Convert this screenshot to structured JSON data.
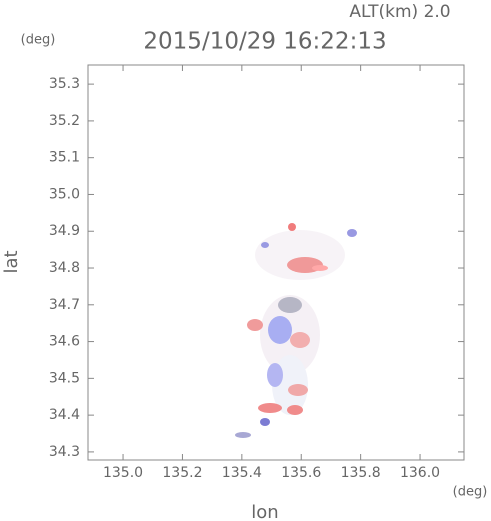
{
  "chart_data": {
    "type": "map",
    "title": "2015/10/29 16:22:13",
    "subtitle": "ALT(km) 2.0",
    "y_unit": "(deg)",
    "x_unit": "(deg)",
    "x_label": "lon",
    "y_label": "lat",
    "xlim": [
      134.882,
      136.148
    ],
    "ylim": [
      34.278,
      35.352
    ],
    "xticks": [
      {
        "value": 135.0,
        "label": "135.0"
      },
      135.2,
      135.4,
      135.6,
      135.8,
      {
        "value": 136.0,
        "label": "136.0"
      }
    ],
    "yticks": [
      34.3,
      34.4,
      34.5,
      34.6,
      34.7,
      34.8,
      34.9,
      {
        "value": 35.0,
        "label": "35.0"
      },
      35.1,
      35.2,
      35.3
    ]
  }
}
